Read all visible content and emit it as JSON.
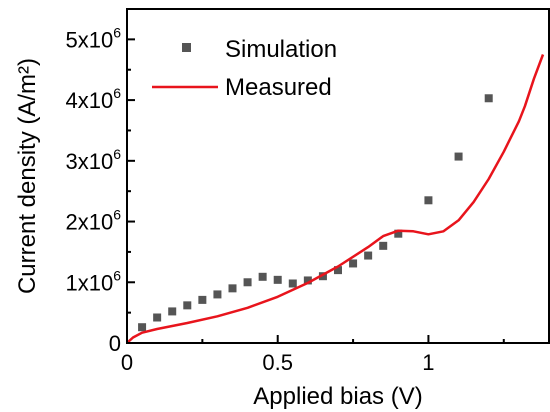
{
  "chart_data": {
    "type": "scatter",
    "xlabel": "Applied bias (V)",
    "ylabel": "Current density (A/m²)",
    "xlim": [
      0,
      1.4
    ],
    "ylim": [
      0,
      5500000
    ],
    "x_ticks": [
      {
        "value": 0,
        "label": "0"
      },
      {
        "value": 0.5,
        "label": "0.5"
      },
      {
        "value": 1,
        "label": "1"
      }
    ],
    "y_ticks": [
      {
        "value": 0,
        "base": "0",
        "exp": ""
      },
      {
        "value": 1000000,
        "base": "1x10",
        "exp": "6"
      },
      {
        "value": 2000000,
        "base": "2x10",
        "exp": "6"
      },
      {
        "value": 3000000,
        "base": "3x10",
        "exp": "6"
      },
      {
        "value": 4000000,
        "base": "4x10",
        "exp": "6"
      },
      {
        "value": 5000000,
        "base": "5x10",
        "exp": "6"
      }
    ],
    "legend_position": "top-left",
    "series": [
      {
        "name": "Simulation",
        "kind": "scatter",
        "color": "#555555",
        "marker": "square",
        "points": [
          [
            0.05,
            260000
          ],
          [
            0.1,
            420000
          ],
          [
            0.15,
            520000
          ],
          [
            0.2,
            620000
          ],
          [
            0.25,
            710000
          ],
          [
            0.3,
            800000
          ],
          [
            0.35,
            900000
          ],
          [
            0.4,
            1000000
          ],
          [
            0.45,
            1090000
          ],
          [
            0.5,
            1040000
          ],
          [
            0.55,
            980000
          ],
          [
            0.6,
            1030000
          ],
          [
            0.65,
            1100000
          ],
          [
            0.7,
            1200000
          ],
          [
            0.75,
            1310000
          ],
          [
            0.8,
            1440000
          ],
          [
            0.85,
            1600000
          ],
          [
            0.9,
            1800000
          ],
          [
            1.0,
            2350000
          ],
          [
            1.1,
            3070000
          ],
          [
            1.2,
            4030000
          ]
        ]
      },
      {
        "name": "Measured",
        "kind": "line",
        "color": "#e8141c",
        "points": [
          [
            0.0,
            0
          ],
          [
            0.02,
            90000
          ],
          [
            0.05,
            170000
          ],
          [
            0.1,
            230000
          ],
          [
            0.2,
            330000
          ],
          [
            0.3,
            440000
          ],
          [
            0.4,
            580000
          ],
          [
            0.5,
            760000
          ],
          [
            0.6,
            990000
          ],
          [
            0.7,
            1260000
          ],
          [
            0.8,
            1580000
          ],
          [
            0.85,
            1760000
          ],
          [
            0.9,
            1850000
          ],
          [
            0.95,
            1840000
          ],
          [
            1.0,
            1790000
          ],
          [
            1.05,
            1840000
          ],
          [
            1.1,
            2020000
          ],
          [
            1.15,
            2320000
          ],
          [
            1.2,
            2700000
          ],
          [
            1.25,
            3150000
          ],
          [
            1.3,
            3650000
          ],
          [
            1.32,
            3900000
          ],
          [
            1.35,
            4350000
          ],
          [
            1.38,
            4750000
          ]
        ]
      }
    ]
  }
}
